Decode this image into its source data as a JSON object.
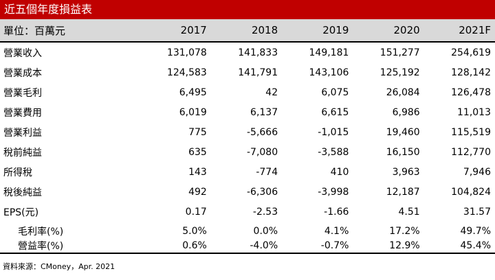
{
  "title": "近五個年度損益表",
  "header": {
    "unit_label": "單位：百萬元",
    "years": [
      "2017",
      "2018",
      "2019",
      "2020",
      "2021F"
    ]
  },
  "rows": [
    {
      "label": "營業收入",
      "values": [
        "131,078",
        "141,833",
        "149,181",
        "151,277",
        "254,619"
      ]
    },
    {
      "label": "營業成本",
      "values": [
        "124,583",
        "141,791",
        "143,106",
        "125,192",
        "128,142"
      ]
    },
    {
      "label": "營業毛利",
      "values": [
        "6,495",
        "42",
        "6,075",
        "26,084",
        "126,478"
      ]
    },
    {
      "label": "營業費用",
      "values": [
        "6,019",
        "6,137",
        "6,615",
        "6,986",
        "11,013"
      ]
    },
    {
      "label": "營業利益",
      "values": [
        "775",
        "-5,666",
        "-1,015",
        "19,460",
        "115,519"
      ]
    },
    {
      "label": "稅前純益",
      "values": [
        "635",
        "-7,080",
        "-3,588",
        "16,150",
        "112,770"
      ]
    },
    {
      "label": "所得稅",
      "values": [
        "143",
        "-774",
        "410",
        "3,963",
        "7,946"
      ]
    },
    {
      "label": "稅後純益",
      "values": [
        "492",
        "-6,306",
        "-3,998",
        "12,187",
        "104,824"
      ]
    },
    {
      "label": "EPS(元)",
      "values": [
        "0.17",
        "-2.53",
        "-1.66",
        "4.51",
        "31.57"
      ]
    }
  ],
  "ratio_rows": [
    {
      "label": "毛利率(%)",
      "values": [
        "5.0%",
        "0.0%",
        "4.1%",
        "17.2%",
        "49.7%"
      ]
    },
    {
      "label": "營益率(%)",
      "values": [
        "0.6%",
        "-4.0%",
        "-0.7%",
        "12.9%",
        "45.4%"
      ]
    }
  ],
  "source": "資料來源：CMoney，Apr. 2021",
  "colors": {
    "title_bg": "#c00000",
    "header_bg": "#d9d9d9"
  }
}
